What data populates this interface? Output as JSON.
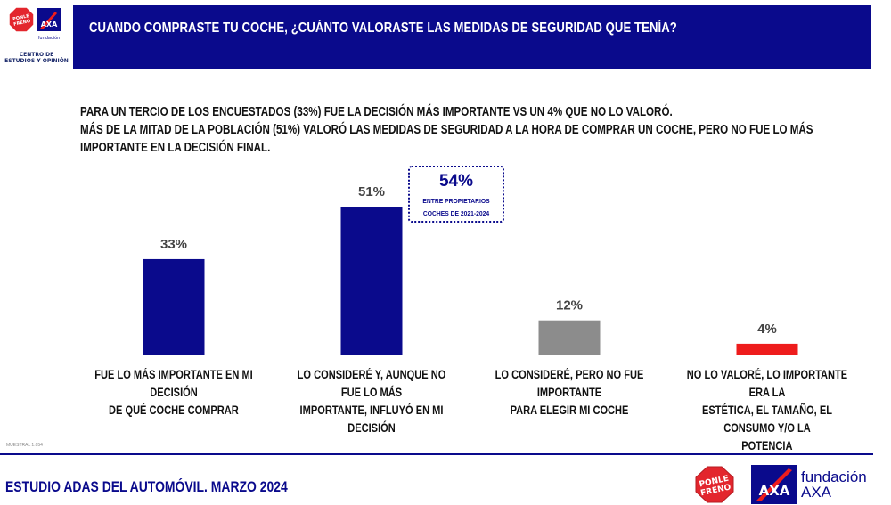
{
  "logo": {
    "ponle_freno_top": "PONLE",
    "ponle_freno_bottom": "FRENO",
    "axa": "AXA",
    "fundacion": "fundación",
    "caption": "CENTRO DE ESTUDIOS Y OPINIÓN"
  },
  "header": {
    "title": "CUANDO COMPRASTE TU COCHE, ¿CUÁNTO VALORASTE LAS MEDIDAS DE SEGURIDAD QUE TENÍA?"
  },
  "summary": {
    "line1": "PARA UN TERCIO DE LOS ENCUESTADOS (33%) FUE LA DECISIÓN MÁS IMPORTANTE VS UN 4% QUE NO LO VALORÓ.",
    "line2": "MÁS DE LA MITAD DE LA POBLACIÓN (51%) VALORÓ LAS MEDIDAS DE SEGURIDAD A LA HORA DE COMPRAR UN COCHE, PERO NO FUE LO MÁS IMPORTANTE EN LA DECISIÓN FINAL."
  },
  "callout": {
    "value": "54%",
    "note": "ENTRE PROPIETARIOS\nCOCHES DE 2021-2024"
  },
  "chart_data": {
    "type": "bar",
    "categories": [
      "FUE LO MÁS IMPORTANTE EN MI DECISIÓN DE QUÉ COCHE COMPRAR",
      "LO CONSIDERÉ Y, AUNQUE NO FUE LO MÁS IMPORTANTE, INFLUYÓ EN MI DECISIÓN",
      "LO CONSIDERÉ, PERO NO FUE IMPORTANTE PARA ELEGIR MI COCHE",
      "NO LO VALORÉ, LO IMPORTANTE ERA LA ESTÉTICA, EL TAMAÑO, EL CONSUMO Y/O LA POTENCIA"
    ],
    "category_lines": [
      [
        "FUE LO MÁS IMPORTANTE EN MI DECISIÓN",
        "DE QUÉ COCHE COMPRAR"
      ],
      [
        "LO CONSIDERÉ Y, AUNQUE NO FUE LO MÁS",
        "IMPORTANTE, INFLUYÓ EN MI DECISIÓN"
      ],
      [
        "LO CONSIDERÉ, PERO NO FUE IMPORTANTE",
        "PARA ELEGIR MI COCHE"
      ],
      [
        "NO LO VALORÉ, LO IMPORTANTE ERA LA",
        "ESTÉTICA, EL TAMAÑO, EL CONSUMO Y/O LA",
        "POTENCIA"
      ]
    ],
    "values": [
      33,
      51,
      12,
      4
    ],
    "data_labels": [
      "33%",
      "51%",
      "12%",
      "4%"
    ],
    "bar_colors": [
      "#0a0a8c",
      "#0a0a8c",
      "#8c8c8c",
      "#ee1c1c"
    ],
    "ylim": [
      0,
      51
    ],
    "grid": false,
    "legend": "none"
  },
  "source_note": "MUESTRAL 1.054",
  "footer": {
    "study_title": "ESTUDIO ADAS DEL AUTOMÓVIL. MARZO 2024",
    "ponle_top": "PONLE",
    "ponle_bottom": "FRENO",
    "axa": "AXA",
    "fundacion_line1": "fundación",
    "fundacion_line2": "AXA"
  },
  "colors": {
    "brand_blue": "#0a0a8c",
    "ponle_red": "#e3262d",
    "axa_red": "#ee1c1c"
  }
}
